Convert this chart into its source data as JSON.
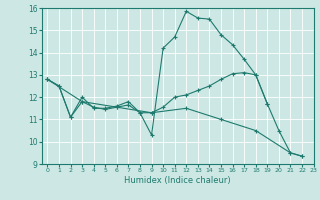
{
  "title": "",
  "xlabel": "Humidex (Indice chaleur)",
  "xlim": [
    -0.5,
    23
  ],
  "ylim": [
    9,
    16
  ],
  "yticks": [
    9,
    10,
    11,
    12,
    13,
    14,
    15,
    16
  ],
  "xticks": [
    0,
    1,
    2,
    3,
    4,
    5,
    6,
    7,
    8,
    9,
    10,
    11,
    12,
    13,
    14,
    15,
    16,
    17,
    18,
    19,
    20,
    21,
    22,
    23
  ],
  "bg_color": "#cde8e4",
  "line_color": "#1e7a6e",
  "grid_color": "#ffffff",
  "line1_x": [
    0,
    1,
    2,
    3,
    4,
    5,
    6,
    7,
    8,
    9,
    10,
    11,
    12,
    13,
    14,
    15,
    16,
    17,
    18,
    19,
    20,
    21,
    22
  ],
  "line1_y": [
    12.8,
    12.5,
    11.1,
    12.0,
    11.5,
    11.5,
    11.6,
    11.8,
    11.3,
    10.3,
    14.2,
    14.7,
    15.85,
    15.55,
    15.5,
    14.8,
    14.35,
    13.7,
    13.0,
    11.7,
    10.5,
    9.5,
    9.35
  ],
  "line2_x": [
    0,
    1,
    2,
    3,
    4,
    5,
    6,
    7,
    8,
    9,
    10,
    11,
    12,
    13,
    14,
    15,
    16,
    17,
    18,
    19
  ],
  "line2_y": [
    12.8,
    12.5,
    11.1,
    11.8,
    11.55,
    11.45,
    11.55,
    11.65,
    11.3,
    11.3,
    11.55,
    12.0,
    12.1,
    12.3,
    12.5,
    12.8,
    13.05,
    13.1,
    13.0,
    11.7
  ],
  "line3_x": [
    0,
    3,
    6,
    9,
    12,
    15,
    18,
    21,
    22
  ],
  "line3_y": [
    12.8,
    11.8,
    11.55,
    11.3,
    11.5,
    11.0,
    10.5,
    9.5,
    9.35
  ]
}
